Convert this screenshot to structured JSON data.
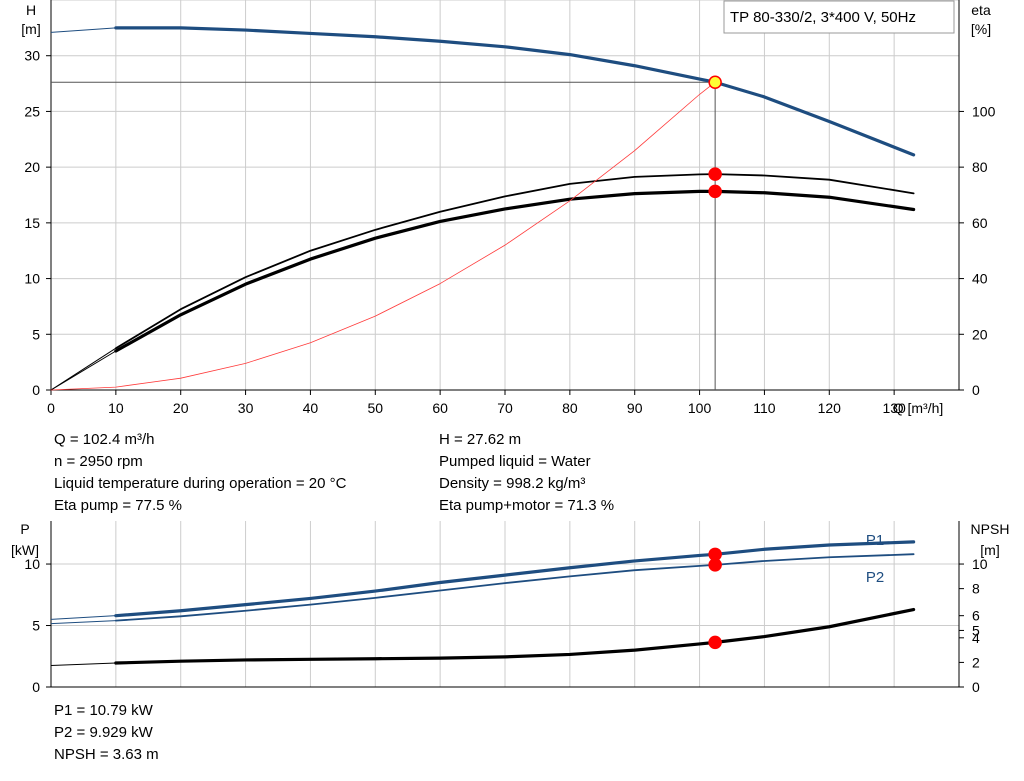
{
  "chart_data": [
    {
      "type": "line",
      "title": "TP 80-330/2, 3*400 V, 50Hz",
      "xlabel": "Q [m³/h]",
      "ylabel_left": [
        "H",
        "[m]"
      ],
      "ylabel_right": [
        "eta",
        "[%]"
      ],
      "xlim": [
        0,
        140
      ],
      "ylim_left": [
        0,
        35
      ],
      "ylim_right": [
        0,
        140
      ],
      "x_ticks": [
        "0",
        "10",
        "20",
        "30",
        "40",
        "50",
        "60",
        "70",
        "80",
        "90",
        "100",
        "110",
        "120",
        "130"
      ],
      "y_ticks_left": [
        "0",
        "5",
        "10",
        "15",
        "20",
        "25",
        "30"
      ],
      "y_ticks_right": [
        "0",
        "20",
        "40",
        "60",
        "80",
        "100"
      ],
      "grid": true,
      "series": [
        {
          "axis": "left",
          "color": "#1e4d80",
          "width": 3.2,
          "x": [
            0,
            10,
            20,
            30,
            40,
            50,
            60,
            70,
            80,
            90,
            100,
            102.4,
            110,
            120,
            133
          ],
          "y": [
            32.1,
            32.5,
            32.5,
            32.3,
            32.0,
            31.7,
            31.3,
            30.8,
            30.1,
            29.1,
            27.9,
            27.62,
            26.3,
            24.1,
            21.1
          ],
          "dashed_before": 10
        },
        {
          "axis": "right",
          "color": "#000000",
          "width": 1.8,
          "x": [
            0,
            10,
            20,
            30,
            40,
            50,
            60,
            70,
            80,
            90,
            100,
            102.4,
            110,
            120,
            133
          ],
          "y": [
            0,
            15,
            29,
            40.5,
            50,
            57.5,
            64,
            69.5,
            74,
            76.5,
            77.4,
            77.5,
            77,
            75.5,
            70.6
          ],
          "dashed_before": 10
        },
        {
          "axis": "right",
          "color": "#000000",
          "width": 3.2,
          "x": [
            0,
            10,
            20,
            30,
            40,
            50,
            60,
            70,
            80,
            90,
            100,
            102.4,
            110,
            120,
            133
          ],
          "y": [
            0,
            14,
            27,
            38,
            47,
            54.5,
            60.5,
            65,
            68.5,
            70.5,
            71.3,
            71.3,
            70.8,
            69.2,
            64.8
          ],
          "dashed_before": 10
        },
        {
          "axis": "left",
          "color": "#ff3b3b",
          "width": 0.8,
          "x": [
            0,
            10,
            20,
            30,
            40,
            50,
            60,
            70,
            80,
            90,
            100,
            102.4
          ],
          "y": [
            0,
            0.26,
            1.06,
            2.39,
            4.24,
            6.63,
            9.55,
            13.0,
            16.98,
            21.49,
            26.53,
            27.62
          ]
        }
      ],
      "markers": [
        {
          "axis": "left",
          "x": 102.4,
          "y": 27.62,
          "fill": "#ffff33",
          "stroke": "#ff0000"
        },
        {
          "axis": "right",
          "x": 102.4,
          "y": 77.5,
          "fill": "#ff0000",
          "stroke": "#ff0000"
        },
        {
          "axis": "right",
          "x": 102.4,
          "y": 71.3,
          "fill": "#ff0000",
          "stroke": "#ff0000"
        }
      ],
      "duty_point": {
        "x": 102.4,
        "y": 27.62
      }
    },
    {
      "type": "line",
      "xlim": [
        0,
        140
      ],
      "ylabel_left": [
        "P",
        "[kW]"
      ],
      "ylabel_right": [
        "NPSH",
        "[m]"
      ],
      "ylim_left": [
        0,
        13.5
      ],
      "ylim_right": [
        0,
        13.5
      ],
      "y_ticks_left": [
        "0",
        "5",
        "10"
      ],
      "y_ticks_right": [
        "0",
        "2",
        "4",
        "5",
        "6",
        "8",
        "10"
      ],
      "y_tick_values_right": [
        0,
        2,
        4,
        4.6,
        5.8,
        8,
        10
      ],
      "grid": true,
      "series": [
        {
          "name": "P1",
          "axis": "left",
          "color": "#1e4d80",
          "width": 3.2,
          "x": [
            0,
            10,
            20,
            30,
            40,
            50,
            60,
            70,
            80,
            90,
            100,
            102.4,
            110,
            120,
            133
          ],
          "y": [
            5.5,
            5.8,
            6.2,
            6.7,
            7.2,
            7.8,
            8.5,
            9.1,
            9.7,
            10.25,
            10.7,
            10.79,
            11.2,
            11.55,
            11.8
          ],
          "dashed_before": 10
        },
        {
          "name": "P2",
          "axis": "left",
          "color": "#1e4d80",
          "width": 1.8,
          "x": [
            0,
            10,
            20,
            30,
            40,
            50,
            60,
            70,
            80,
            90,
            100,
            102.4,
            110,
            120,
            133
          ],
          "y": [
            5.15,
            5.4,
            5.75,
            6.2,
            6.7,
            7.25,
            7.85,
            8.45,
            9.0,
            9.5,
            9.85,
            9.929,
            10.25,
            10.55,
            10.8
          ],
          "dashed_before": 10
        },
        {
          "axis": "right",
          "color": "#000000",
          "width": 3.2,
          "x": [
            0,
            10,
            20,
            30,
            40,
            50,
            60,
            70,
            80,
            90,
            100,
            102.4,
            110,
            120,
            133
          ],
          "y": [
            1.75,
            1.95,
            2.1,
            2.2,
            2.25,
            2.3,
            2.35,
            2.45,
            2.65,
            3.0,
            3.5,
            3.63,
            4.1,
            4.9,
            6.3
          ],
          "dashed_before": 10
        }
      ],
      "markers": [
        {
          "axis": "left",
          "x": 102.4,
          "y": 10.79,
          "fill": "#ff0000",
          "stroke": "#ff0000"
        },
        {
          "axis": "left",
          "x": 102.4,
          "y": 9.929,
          "fill": "#ff0000",
          "stroke": "#ff0000"
        },
        {
          "axis": "right",
          "x": 102.4,
          "y": 3.63,
          "fill": "#ff0000",
          "stroke": "#ff0000"
        }
      ]
    }
  ],
  "info": {
    "q": "Q = 102.4 m³/h",
    "n": "n = 2950 rpm",
    "temp": "Liquid temperature during operation = 20 °C",
    "eta_pump": "Eta pump = 77.5 %",
    "h": "H = 27.62 m",
    "liquid": "Pumped liquid = Water",
    "density": "Density = 998.2 kg/m³",
    "eta_total": "Eta pump+motor = 71.3 %",
    "p1": "P1 = 10.79 kW",
    "p2": "P2 = 9.929 kW",
    "npsh": "NPSH = 3.63 m"
  }
}
